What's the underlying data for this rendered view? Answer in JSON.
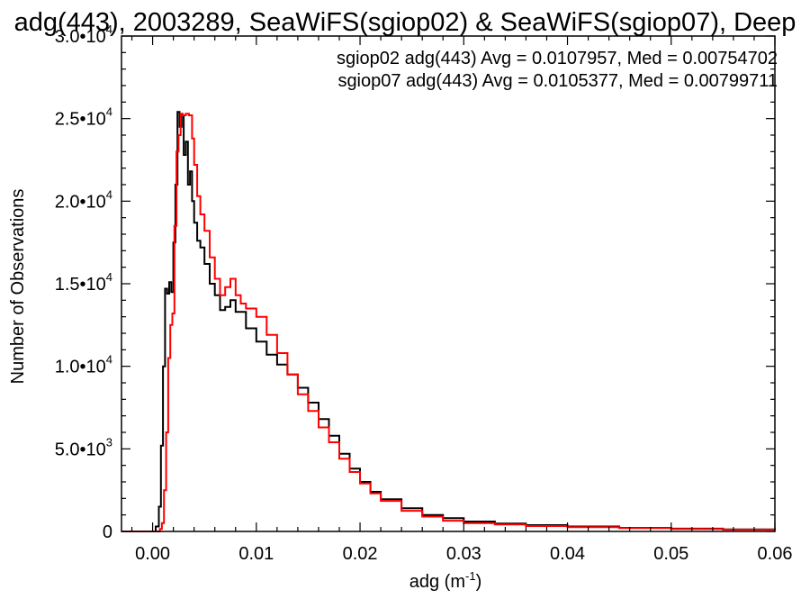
{
  "chart_data": {
    "type": "histogram-step",
    "title": "adg(443), 2003289, SeaWiFS(sgiop02) & SeaWiFS(sgiop07), Deep",
    "xlabel": "adg (m",
    "xlabel_sup": "-1",
    "xlabel_tail": ")",
    "ylabel": "Number of Observations",
    "xlim": [
      -0.003,
      0.06
    ],
    "ylim": [
      0,
      30000
    ],
    "grid": false,
    "x_ticks": [
      {
        "v": 0.0,
        "t": "0.00"
      },
      {
        "v": 0.01,
        "t": "0.01"
      },
      {
        "v": 0.02,
        "t": "0.02"
      },
      {
        "v": 0.03,
        "t": "0.03"
      },
      {
        "v": 0.04,
        "t": "0.04"
      },
      {
        "v": 0.05,
        "t": "0.05"
      },
      {
        "v": 0.06,
        "t": "0.06"
      }
    ],
    "y_ticks": [
      {
        "v": 0,
        "t": "0",
        "sup": ""
      },
      {
        "v": 5000,
        "t": "5.0•10",
        "sup": "3"
      },
      {
        "v": 10000,
        "t": "1.0•10",
        "sup": "4"
      },
      {
        "v": 15000,
        "t": "1.5•10",
        "sup": "4"
      },
      {
        "v": 20000,
        "t": "2.0•10",
        "sup": "4"
      },
      {
        "v": 25000,
        "t": "2.5•10",
        "sup": "4"
      },
      {
        "v": 30000,
        "t": "3.0•10",
        "sup": "4"
      }
    ],
    "legend": [
      {
        "text": "sgiop02 adg(443) Avg = 0.0107957, Med = 0.00754702",
        "color": "#000000"
      },
      {
        "text": "sgiop07 adg(443) Avg = 0.0105377, Med = 0.00799711",
        "color": "#ff0000"
      }
    ],
    "series": [
      {
        "color": "#000000",
        "points": [
          [
            -0.003,
            0
          ],
          [
            0.0,
            0
          ],
          [
            0.0003,
            300
          ],
          [
            0.0006,
            1500
          ],
          [
            0.0008,
            5200
          ],
          [
            0.001,
            10000
          ],
          [
            0.0012,
            14700
          ],
          [
            0.0014,
            14400
          ],
          [
            0.0016,
            15100
          ],
          [
            0.0018,
            14500
          ],
          [
            0.002,
            17500
          ],
          [
            0.0022,
            21000
          ],
          [
            0.0024,
            25400
          ],
          [
            0.0026,
            24500
          ],
          [
            0.0028,
            25200
          ],
          [
            0.003,
            22800
          ],
          [
            0.0032,
            23600
          ],
          [
            0.0034,
            21000
          ],
          [
            0.0036,
            21800
          ],
          [
            0.0038,
            20000
          ],
          [
            0.004,
            18700
          ],
          [
            0.0043,
            17600
          ],
          [
            0.0046,
            17200
          ],
          [
            0.005,
            16200
          ],
          [
            0.0055,
            15000
          ],
          [
            0.006,
            14300
          ],
          [
            0.0065,
            13400
          ],
          [
            0.007,
            13600
          ],
          [
            0.0075,
            14000
          ],
          [
            0.008,
            13300
          ],
          [
            0.009,
            12300
          ],
          [
            0.01,
            11500
          ],
          [
            0.011,
            10700
          ],
          [
            0.012,
            10100
          ],
          [
            0.013,
            9500
          ],
          [
            0.014,
            8700
          ],
          [
            0.015,
            7800
          ],
          [
            0.016,
            6800
          ],
          [
            0.017,
            5800
          ],
          [
            0.018,
            4700
          ],
          [
            0.019,
            3800
          ],
          [
            0.02,
            3000
          ],
          [
            0.021,
            2400
          ],
          [
            0.022,
            1950
          ],
          [
            0.024,
            1400
          ],
          [
            0.026,
            1000
          ],
          [
            0.028,
            800
          ],
          [
            0.03,
            600
          ],
          [
            0.033,
            480
          ],
          [
            0.036,
            380
          ],
          [
            0.04,
            300
          ],
          [
            0.045,
            220
          ],
          [
            0.05,
            170
          ],
          [
            0.055,
            120
          ],
          [
            0.06,
            100
          ]
        ]
      },
      {
        "color": "#ff0000",
        "points": [
          [
            -0.003,
            0
          ],
          [
            0.0005,
            0
          ],
          [
            0.0007,
            150
          ],
          [
            0.0009,
            500
          ],
          [
            0.0011,
            2500
          ],
          [
            0.0013,
            6000
          ],
          [
            0.0015,
            10500
          ],
          [
            0.0017,
            12500
          ],
          [
            0.0019,
            13200
          ],
          [
            0.0021,
            18500
          ],
          [
            0.0023,
            23000
          ],
          [
            0.0025,
            24000
          ],
          [
            0.0027,
            25300
          ],
          [
            0.0029,
            25200
          ],
          [
            0.0032,
            25300
          ],
          [
            0.0035,
            25200
          ],
          [
            0.0038,
            23800
          ],
          [
            0.004,
            22200
          ],
          [
            0.0043,
            20300
          ],
          [
            0.0046,
            19200
          ],
          [
            0.005,
            18200
          ],
          [
            0.0055,
            16600
          ],
          [
            0.006,
            15300
          ],
          [
            0.0065,
            14300
          ],
          [
            0.007,
            14800
          ],
          [
            0.0075,
            15300
          ],
          [
            0.008,
            14300
          ],
          [
            0.0085,
            13800
          ],
          [
            0.009,
            13500
          ],
          [
            0.01,
            13000
          ],
          [
            0.011,
            11900
          ],
          [
            0.012,
            10800
          ],
          [
            0.013,
            9500
          ],
          [
            0.014,
            8300
          ],
          [
            0.015,
            7300
          ],
          [
            0.016,
            6300
          ],
          [
            0.017,
            5400
          ],
          [
            0.018,
            4400
          ],
          [
            0.019,
            3600
          ],
          [
            0.02,
            2900
          ],
          [
            0.021,
            2300
          ],
          [
            0.022,
            1850
          ],
          [
            0.024,
            1250
          ],
          [
            0.026,
            900
          ],
          [
            0.028,
            650
          ],
          [
            0.03,
            500
          ],
          [
            0.033,
            420
          ],
          [
            0.036,
            330
          ],
          [
            0.04,
            260
          ],
          [
            0.045,
            200
          ],
          [
            0.05,
            150
          ],
          [
            0.055,
            110
          ],
          [
            0.06,
            80
          ]
        ]
      }
    ]
  }
}
